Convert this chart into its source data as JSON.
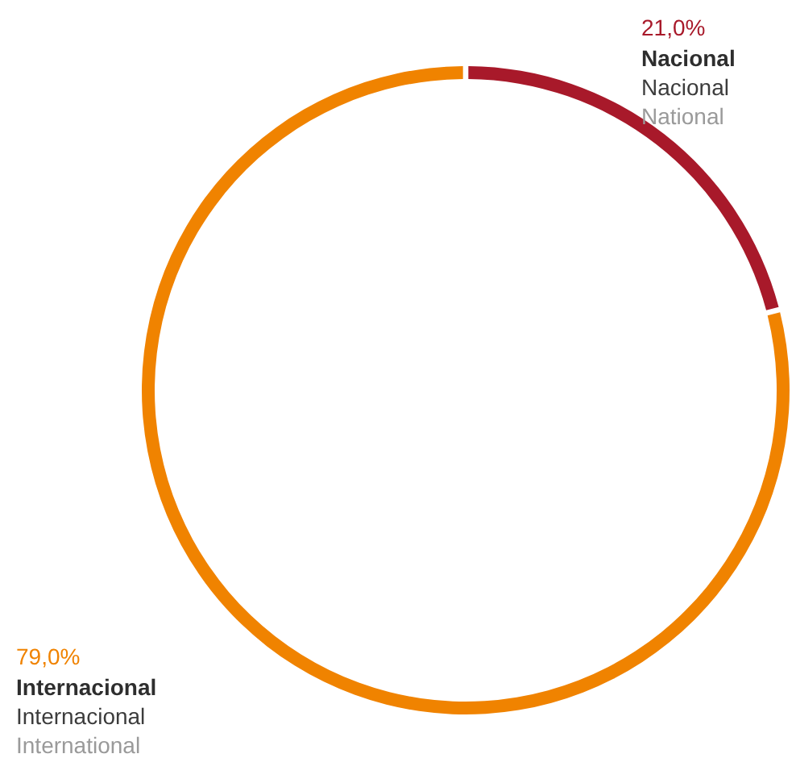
{
  "chart_data": {
    "type": "donut",
    "categories": [
      "Nacional",
      "Internacional"
    ],
    "values": [
      21,
      79
    ],
    "colors": [
      "#a8192a",
      "#f08300"
    ],
    "value_labels": [
      "21,0%",
      "79,0%"
    ],
    "annotations": [
      {
        "text": "Nacional",
        "x": "Nacional"
      },
      {
        "text": "National",
        "x": "Nacional"
      },
      {
        "text": "Internacional",
        "x": "Internacional"
      },
      {
        "text": "International",
        "x": "Internacional"
      }
    ],
    "legend": false
  }
}
